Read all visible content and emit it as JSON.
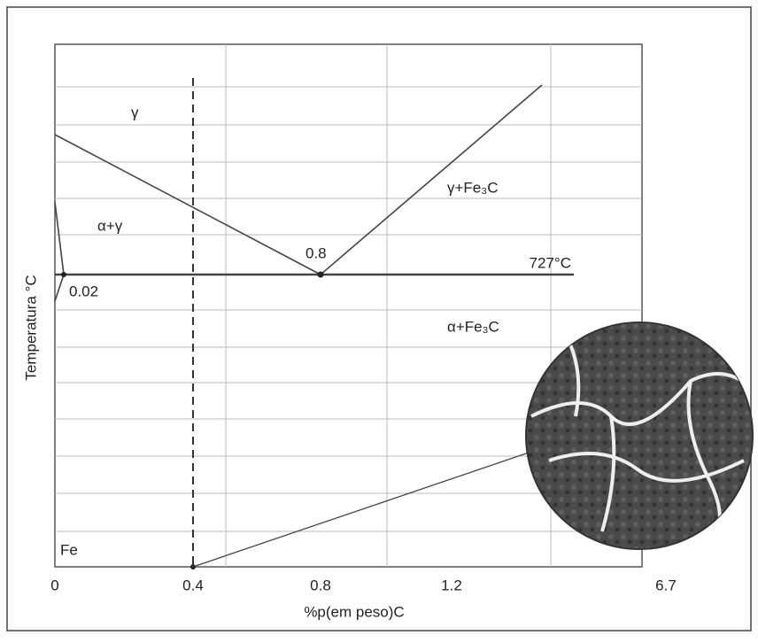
{
  "diagram": {
    "phase_labels": {
      "gamma": "γ",
      "alpha_gamma": "α+γ",
      "gamma_fe3c": "γ+Fe₃C",
      "alpha_fe3c": "α+Fe₃C"
    },
    "points": {
      "eutectoid_composition": "0.8",
      "eutectoid_temperature": "727°C",
      "alpha_solubility": "0.02"
    },
    "iron_label": "Fe",
    "x_axis": {
      "title": "%p(em peso)C",
      "ticks": [
        "0",
        "0.4",
        "0.8",
        "1.2",
        "6.7"
      ]
    },
    "y_axis": {
      "title": "Temperatura °C"
    }
  }
}
